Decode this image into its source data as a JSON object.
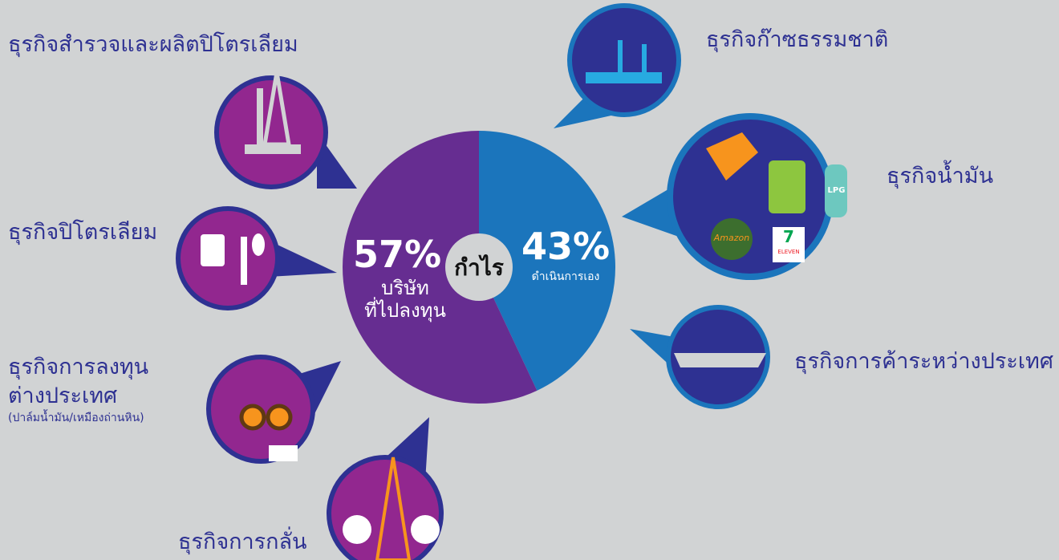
{
  "chart_data": {
    "type": "pie",
    "center_label": "กำไร",
    "categories": [
      "บริษัท\nที่ไปลงทุน",
      "ดำเนินการเอง"
    ],
    "values": [
      57,
      43
    ],
    "value_labels": [
      "57%",
      "43%"
    ],
    "colors": [
      "#662d91",
      "#1b75bc"
    ]
  },
  "businesses": {
    "exploration": "ธุรกิจสำรวจและผลิตปิโตรเลียม",
    "petroleum": "ธุรกิจปิโตรเลียม",
    "investment": "ธุรกิจการลงทุน\nต่างประเทศ",
    "investment_note": "(ปาล์มน้ำมัน/เหมืองถ่านหิน)",
    "refining": "ธุรกิจการกลั่น",
    "gas": "ธุรกิจก๊าซธรรมชาติ",
    "oil": "ธุรกิจน้ำมัน",
    "trade": "ธุรกิจการค้าระหว่างประเทศ"
  },
  "icon_texts": {
    "lpg": "LPG",
    "seven": "7",
    "eleven": "ELEVEN",
    "amazon": "Amazon"
  }
}
